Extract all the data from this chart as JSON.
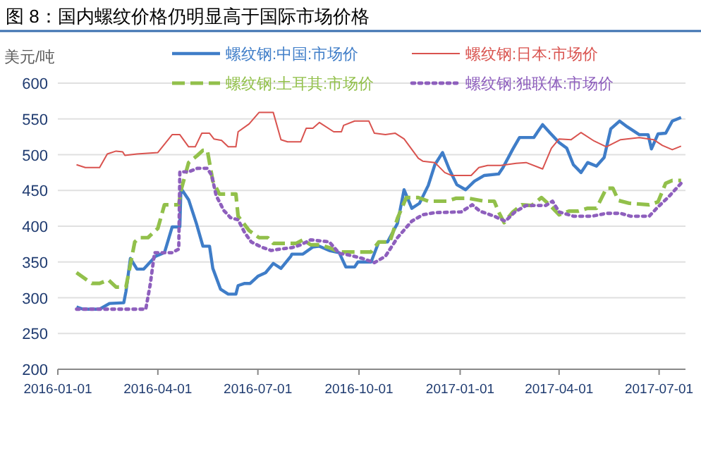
{
  "chart_data": {
    "type": "line",
    "title": "图 8：国内螺纹价格仍明显高于国际市场价格",
    "ylabel": "美元/吨",
    "xlim": [
      "2016-01-01",
      "2017-07-25"
    ],
    "xticks": [
      {
        "value": "2016-01-01",
        "label": "2016-01-01"
      },
      {
        "value": "2016-04-01",
        "label": "2016-04-01"
      },
      {
        "value": "2016-07-01",
        "label": "2016-07-01"
      },
      {
        "value": "2016-10-01",
        "label": "2016-10-01"
      },
      {
        "value": "2017-01-01",
        "label": "2017-01-01"
      },
      {
        "value": "2017-04-01",
        "label": "2017-04-01"
      },
      {
        "value": "2017-07-01",
        "label": "2017-07-01"
      }
    ],
    "ylim": [
      200,
      600
    ],
    "yticks": [
      200,
      250,
      300,
      350,
      400,
      450,
      500,
      550,
      600
    ],
    "grid": "y",
    "legend": "top",
    "series": [
      {
        "name": "螺纹钢:中国:市场价",
        "color": "#3f7dc8",
        "line_style": "solid",
        "x": [
          "2016-01-18",
          "2016-01-24",
          "2016-02-08",
          "2016-02-17",
          "2016-03-01",
          "2016-03-03",
          "2016-03-07",
          "2016-03-13",
          "2016-03-19",
          "2016-03-30",
          "2016-04-07",
          "2016-04-14",
          "2016-04-21",
          "2016-04-22",
          "2016-04-29",
          "2016-05-06",
          "2016-05-12",
          "2016-05-18",
          "2016-05-21",
          "2016-05-28",
          "2016-06-04",
          "2016-06-11",
          "2016-06-13",
          "2016-06-19",
          "2016-06-24",
          "2016-07-01",
          "2016-07-08",
          "2016-07-15",
          "2016-07-22",
          "2016-07-31",
          "2016-08-01",
          "2016-08-11",
          "2016-08-20",
          "2016-08-26",
          "2016-09-04",
          "2016-09-13",
          "2016-09-19",
          "2016-09-27",
          "2016-09-30",
          "2016-10-12",
          "2016-10-19",
          "2016-10-27",
          "2016-11-05",
          "2016-11-11",
          "2016-11-18",
          "2016-11-25",
          "2016-12-03",
          "2016-12-09",
          "2016-12-16",
          "2016-12-22",
          "2016-12-29",
          "2017-01-06",
          "2017-01-14",
          "2017-01-23",
          "2017-02-05",
          "2017-02-09",
          "2017-02-18",
          "2017-02-24",
          "2017-03-09",
          "2017-03-17",
          "2017-03-24",
          "2017-04-01",
          "2017-04-08",
          "2017-04-14",
          "2017-04-21",
          "2017-04-27",
          "2017-05-05",
          "2017-05-12",
          "2017-05-18",
          "2017-05-26",
          "2017-06-02",
          "2017-06-13",
          "2017-06-21",
          "2017-06-24",
          "2017-06-30",
          "2017-07-07",
          "2017-07-13",
          "2017-07-21"
        ],
        "values": [
          287,
          284,
          284,
          292,
          293,
          309,
          355,
          340,
          340,
          358,
          363,
          399,
          399,
          453,
          437,
          404,
          372,
          372,
          341,
          312,
          305,
          305,
          317,
          320,
          320,
          330,
          335,
          348,
          341,
          358,
          361,
          361,
          371,
          372,
          366,
          363,
          343,
          343,
          350,
          350,
          378,
          378,
          404,
          451,
          425,
          432,
          457,
          486,
          503,
          480,
          458,
          451,
          463,
          471,
          473,
          482,
          508,
          524,
          524,
          542,
          530,
          517,
          509,
          486,
          475,
          489,
          484,
          496,
          536,
          547,
          539,
          528,
          528,
          508,
          529,
          530,
          547,
          552
        ]
      },
      {
        "name": "螺纹钢:日本:市场价",
        "color": "#d9534f",
        "line_style": "solid",
        "x": [
          "2016-01-18",
          "2016-01-26",
          "2016-02-08",
          "2016-02-15",
          "2016-02-23",
          "2016-02-29",
          "2016-03-02",
          "2016-03-13",
          "2016-04-01",
          "2016-04-14",
          "2016-04-21",
          "2016-04-29",
          "2016-05-05",
          "2016-05-11",
          "2016-05-18",
          "2016-05-22",
          "2016-05-29",
          "2016-06-04",
          "2016-06-11",
          "2016-06-13",
          "2016-06-23",
          "2016-07-02",
          "2016-07-15",
          "2016-07-22",
          "2016-07-28",
          "2016-08-09",
          "2016-08-14",
          "2016-08-20",
          "2016-08-26",
          "2016-09-08",
          "2016-09-15",
          "2016-09-17",
          "2016-09-27",
          "2016-10-10",
          "2016-10-15",
          "2016-10-25",
          "2016-11-03",
          "2016-11-11",
          "2016-11-24",
          "2016-11-28",
          "2016-12-09",
          "2016-12-18",
          "2016-12-24",
          "2017-01-11",
          "2017-01-18",
          "2017-01-26",
          "2017-02-07",
          "2017-02-21",
          "2017-03-02",
          "2017-03-17",
          "2017-03-25",
          "2017-04-01",
          "2017-04-12",
          "2017-04-21",
          "2017-05-03",
          "2017-05-14",
          "2017-05-27",
          "2017-06-13",
          "2017-06-26",
          "2017-07-04",
          "2017-07-13",
          "2017-07-21"
        ],
        "values": [
          486,
          482,
          482,
          501,
          505,
          504,
          499,
          501,
          503,
          528,
          528,
          511,
          511,
          530,
          530,
          522,
          520,
          511,
          511,
          532,
          543,
          559,
          559,
          521,
          518,
          518,
          537,
          537,
          545,
          532,
          532,
          541,
          547,
          547,
          530,
          528,
          530,
          522,
          495,
          491,
          489,
          475,
          471,
          471,
          482,
          485,
          485,
          488,
          489,
          480,
          509,
          522,
          521,
          531,
          519,
          511,
          521,
          524,
          521,
          513,
          507,
          512
        ]
      },
      {
        "name": "螺纹钢:土耳其:市场价",
        "color": "#92c04b",
        "line_style": "dashed",
        "x": [
          "2016-01-18",
          "2016-02-01",
          "2016-02-08",
          "2016-02-16",
          "2016-02-23",
          "2016-03-03",
          "2016-03-11",
          "2016-03-15",
          "2016-03-23",
          "2016-04-01",
          "2016-04-07",
          "2016-04-20",
          "2016-04-22",
          "2016-04-29",
          "2016-05-07",
          "2016-05-12",
          "2016-05-16",
          "2016-05-21",
          "2016-05-27",
          "2016-06-11",
          "2016-06-13",
          "2016-06-23",
          "2016-07-02",
          "2016-07-10",
          "2016-07-15",
          "2016-08-05",
          "2016-08-11",
          "2016-08-18",
          "2016-08-26",
          "2016-09-04",
          "2016-09-13",
          "2016-10-12",
          "2016-10-19",
          "2016-10-29",
          "2016-11-05",
          "2016-11-13",
          "2016-11-24",
          "2016-12-03",
          "2016-12-20",
          "2016-12-28",
          "2017-01-09",
          "2017-01-23",
          "2017-02-01",
          "2017-02-05",
          "2017-02-10",
          "2017-02-18",
          "2017-02-26",
          "2017-03-07",
          "2017-03-16",
          "2017-03-24",
          "2017-04-01",
          "2017-04-10",
          "2017-04-18",
          "2017-04-27",
          "2017-05-05",
          "2017-05-14",
          "2017-05-20",
          "2017-05-25",
          "2017-06-04",
          "2017-06-22",
          "2017-06-30",
          "2017-07-07",
          "2017-07-13",
          "2017-07-21"
        ],
        "values": [
          335,
          320,
          320,
          325,
          315,
          315,
          378,
          384,
          384,
          397,
          430,
          430,
          450,
          489,
          499,
          506,
          506,
          463,
          445,
          445,
          414,
          394,
          384,
          384,
          376,
          376,
          381,
          374,
          374,
          370,
          364,
          364,
          378,
          378,
          411,
          440,
          440,
          435,
          435,
          439,
          439,
          435,
          435,
          420,
          405,
          420,
          430,
          429,
          440,
          429,
          416,
          421,
          421,
          425,
          425,
          453,
          453,
          436,
          432,
          430,
          434,
          460,
          464,
          464
        ]
      },
      {
        "name": "螺纹钢:独联体:市场价",
        "color": "#8e5fbd",
        "line_style": "dotted",
        "x": [
          "2016-01-18",
          "2016-03-21",
          "2016-03-25",
          "2016-03-29",
          "2016-04-14",
          "2016-04-20",
          "2016-04-21",
          "2016-04-29",
          "2016-05-07",
          "2016-05-16",
          "2016-05-20",
          "2016-05-24",
          "2016-05-31",
          "2016-06-06",
          "2016-06-13",
          "2016-06-19",
          "2016-06-25",
          "2016-07-04",
          "2016-07-13",
          "2016-07-21",
          "2016-08-01",
          "2016-08-09",
          "2016-08-18",
          "2016-09-04",
          "2016-09-13",
          "2016-09-21",
          "2016-10-04",
          "2016-10-15",
          "2016-10-25",
          "2016-11-05",
          "2016-11-18",
          "2016-11-28",
          "2016-12-09",
          "2017-01-02",
          "2017-01-12",
          "2017-01-19",
          "2017-02-01",
          "2017-02-11",
          "2017-02-20",
          "2017-03-02",
          "2017-03-20",
          "2017-03-26",
          "2017-04-01",
          "2017-04-14",
          "2017-05-01",
          "2017-05-14",
          "2017-05-27",
          "2017-06-05",
          "2017-06-22",
          "2017-06-30",
          "2017-07-09",
          "2017-07-21"
        ],
        "values": [
          284,
          284,
          318,
          363,
          363,
          368,
          476,
          476,
          481,
          481,
          471,
          443,
          422,
          412,
          409,
          391,
          378,
          371,
          366,
          368,
          370,
          374,
          381,
          378,
          362,
          360,
          355,
          349,
          358,
          384,
          407,
          416,
          419,
          420,
          430,
          421,
          414,
          407,
          420,
          429,
          429,
          435,
          420,
          414,
          414,
          418,
          418,
          414,
          414,
          427,
          440,
          460
        ]
      }
    ]
  }
}
